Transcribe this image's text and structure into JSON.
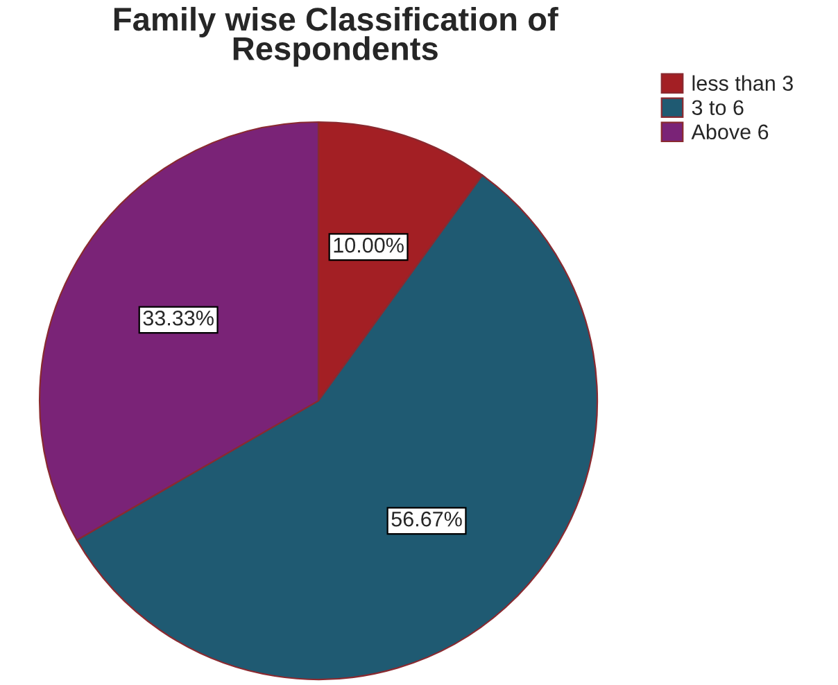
{
  "chart_data": {
    "type": "pie",
    "title": "Family wise Classification of\nRespondents",
    "categories": [
      "less than 3",
      "3 to 6",
      "Above 6"
    ],
    "values": [
      10.0,
      56.67,
      33.33
    ],
    "value_labels": [
      "10.00%",
      "56.67%",
      "33.33%"
    ],
    "colors": [
      "#a31f24",
      "#1f5a72",
      "#7a2377"
    ],
    "legend": "top right"
  }
}
